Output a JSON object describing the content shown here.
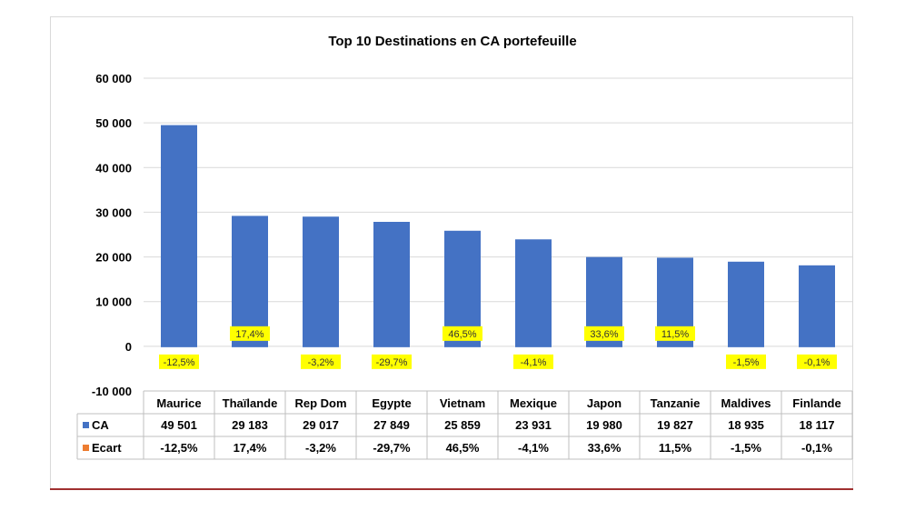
{
  "chart_data": {
    "type": "bar",
    "title": "Top 10 Destinations en CA portefeuille",
    "categories": [
      "Maurice",
      "Thaïlande",
      "Rep Dom",
      "Egypte",
      "Vietnam",
      "Mexique",
      "Japon",
      "Tanzanie",
      "Maldives",
      "Finlande"
    ],
    "series": [
      {
        "name": "CA",
        "values": [
          49501,
          29183,
          29017,
          27849,
          25859,
          23931,
          19980,
          19827,
          18935,
          18117
        ],
        "display": [
          "49 501",
          "29 183",
          "29 017",
          "27 849",
          "25 859",
          "23 931",
          "19 980",
          "19 827",
          "18 935",
          "18 117"
        ],
        "color": "#4472c4"
      },
      {
        "name": "Ecart",
        "values": [
          -0.125,
          0.174,
          -0.032,
          -0.297,
          0.465,
          -0.041,
          0.336,
          0.115,
          -0.015,
          -0.001
        ],
        "display": [
          "-12,5%",
          "17,4%",
          "-3,2%",
          "-29,7%",
          "46,5%",
          "-4,1%",
          "33,6%",
          "11,5%",
          "-1,5%",
          "-0,1%"
        ],
        "color": "#ed7d31"
      }
    ],
    "ylim": [
      -10000,
      60000
    ],
    "yticks": [
      60000,
      50000,
      40000,
      30000,
      20000,
      10000,
      0,
      -10000
    ],
    "ytick_labels": [
      "60 000",
      "50 000",
      "40 000",
      "30 000",
      "20 000",
      "10 000",
      "0",
      "-10 000"
    ],
    "grid": true,
    "data_table": true,
    "data_label_highlight": "#ffff00"
  }
}
